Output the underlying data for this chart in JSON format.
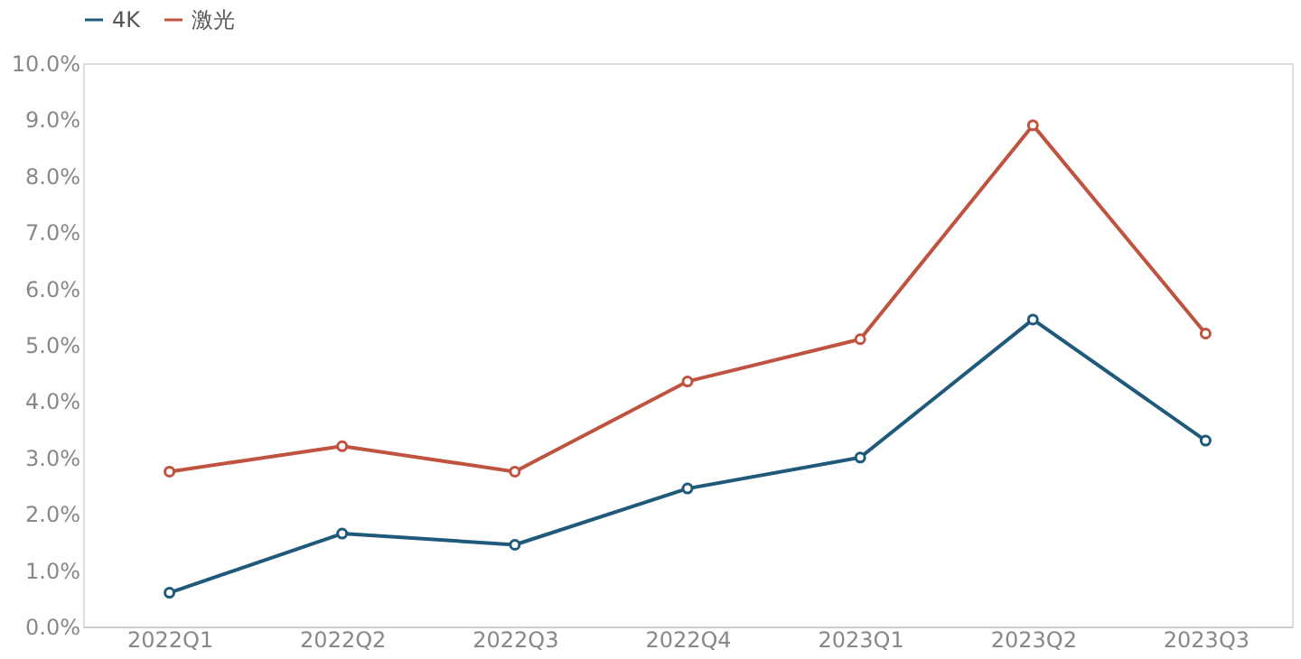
{
  "chart_data": {
    "type": "line",
    "categories": [
      "2022Q1",
      "2022Q2",
      "2022Q3",
      "2022Q4",
      "2023Q1",
      "2023Q2",
      "2023Q3"
    ],
    "series": [
      {
        "name": "4K",
        "color": "#1f5a7a",
        "values": [
          0.6,
          1.65,
          1.45,
          2.45,
          3.0,
          5.45,
          3.3
        ]
      },
      {
        "name": "激光",
        "color": "#c0533f",
        "values": [
          2.75,
          3.2,
          2.75,
          4.35,
          5.1,
          8.9,
          5.2
        ]
      }
    ],
    "ylim": [
      0,
      10
    ],
    "yticks": [
      {
        "value": 0,
        "label": "0.0%"
      },
      {
        "value": 1,
        "label": "1.0%"
      },
      {
        "value": 2,
        "label": "2.0%"
      },
      {
        "value": 3,
        "label": "3.0%"
      },
      {
        "value": 4,
        "label": "4.0%"
      },
      {
        "value": 5,
        "label": "5.0%"
      },
      {
        "value": 6,
        "label": "6.0%"
      },
      {
        "value": 7,
        "label": "7.0%"
      },
      {
        "value": 8,
        "label": "8.0%"
      },
      {
        "value": 9,
        "label": "9.0%"
      },
      {
        "value": 10,
        "label": "10.0%"
      }
    ],
    "grid": false,
    "legend": "top",
    "marker": "circle"
  }
}
